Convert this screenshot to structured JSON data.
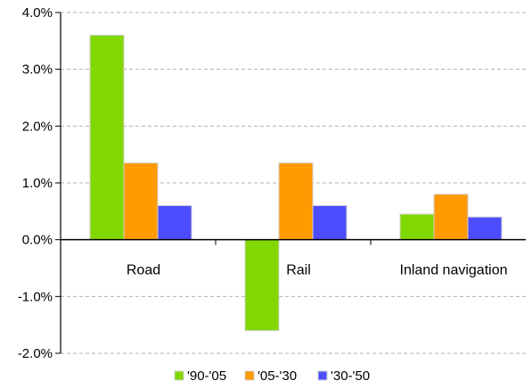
{
  "chart_data": {
    "type": "bar",
    "title": "",
    "xlabel": "",
    "ylabel": "",
    "categories": [
      "Road",
      "Rail",
      "Inland navigation"
    ],
    "series": [
      {
        "name": "'90-'05",
        "values": [
          3.6,
          -1.6,
          0.45
        ],
        "color": "#80d800"
      },
      {
        "name": "'05-'30",
        "values": [
          1.35,
          1.35,
          0.8
        ],
        "color": "#ff9a00"
      },
      {
        "name": "'30-'50",
        "values": [
          0.6,
          0.6,
          0.4
        ],
        "color": "#4d4dff"
      }
    ],
    "ylim": [
      -2.0,
      4.0
    ],
    "yticks": [
      -2.0,
      -1.0,
      0.0,
      1.0,
      2.0,
      3.0,
      4.0
    ],
    "ytick_labels": [
      "-2.0%",
      "-1.0%",
      "0.0%",
      "1.0%",
      "2.0%",
      "3.0%",
      "4.0%"
    ],
    "grid": "horizontal-dashed",
    "legend_position": "bottom"
  }
}
